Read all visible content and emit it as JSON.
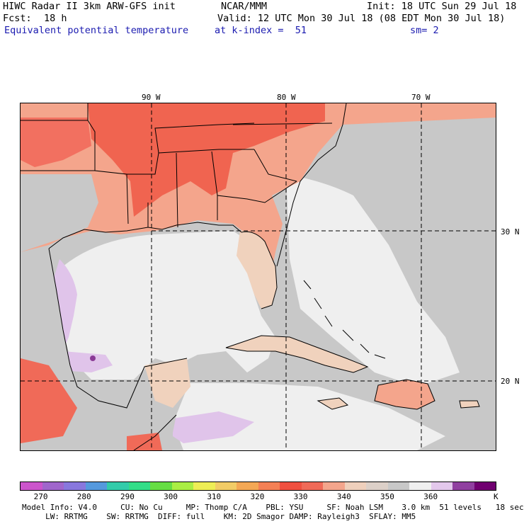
{
  "header": {
    "model": "HIWC Radar II 3km ARW-GFS init",
    "org": "NCAR/MMM",
    "init": "Init: 18 UTC Sun 29 Jul 18",
    "fcst_label": "Fcst:",
    "fcst_value": "18 h",
    "valid": "Valid: 12 UTC Mon 30 Jul 18 (08 EDT Mon 30 Jul 18)",
    "field": "Equivalent potential temperature",
    "level": "at k-index =  51",
    "smooth": "sm= 2"
  },
  "axes": {
    "lon_labels": [
      "90 W",
      "80 W",
      "70 W"
    ],
    "lat_labels": [
      "30 N",
      "20 N"
    ]
  },
  "colorbar": {
    "colors": [
      "#cc55cc",
      "#a066cc",
      "#8877dd",
      "#5599dd",
      "#33ccaa",
      "#33dd88",
      "#66dd44",
      "#aaee44",
      "#eeee55",
      "#f2cc66",
      "#f4a855",
      "#f48055",
      "#f05040",
      "#f06a58",
      "#f4a58c",
      "#efd0bc",
      "#dcd0c8",
      "#c8c8c8",
      "#f0f0f0",
      "#e3c8ec",
      "#9040a0",
      "#700070"
    ],
    "tick_labels": [
      "270",
      "280",
      "290",
      "300",
      "310",
      "320",
      "330",
      "340",
      "350",
      "360"
    ],
    "unit": "K"
  },
  "footer": {
    "line1": "Model Info: V4.0     CU: No Cu     MP: Thomp C/A    PBL: YSU     SF: Noah LSM    3.0 km  51 levels   18 sec",
    "line2": "     LW: RRTMG    SW: RRTMG  DIFF: full    KM: 2D Smagor DAMP: Rayleigh3  SFLAY: MM5"
  }
}
